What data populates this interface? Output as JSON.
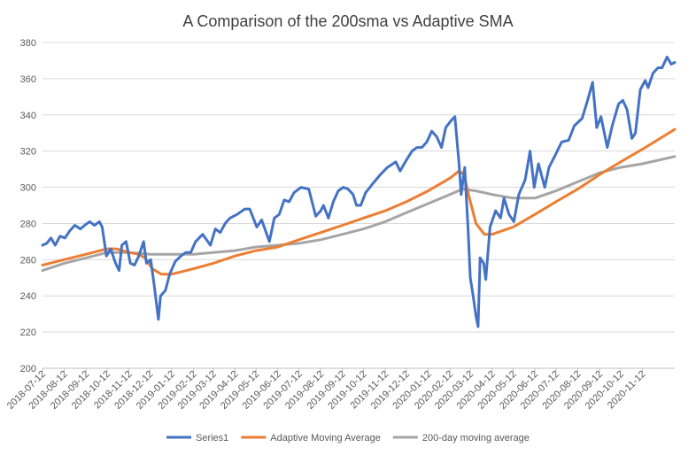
{
  "chart_data": {
    "type": "line",
    "title": "A Comparison of the  200sma vs Adaptive SMA",
    "xlabel": "",
    "ylabel": "",
    "ylim": [
      200,
      380
    ],
    "yticks": [
      200,
      220,
      240,
      260,
      280,
      300,
      320,
      340,
      360,
      380
    ],
    "xlim": [
      "2018-07-12",
      "2020-12-28"
    ],
    "x_tick_labels": [
      "2018-07-12",
      "2018-08-12",
      "2018-09-12",
      "2018-10-12",
      "2018-11-12",
      "2018-12-12",
      "2019-01-12",
      "2019-02-12",
      "2019-03-12",
      "2019-04-12",
      "2019-05-12",
      "2019-06-12",
      "2019-07-12",
      "2019-08-12",
      "2019-09-12",
      "2019-10-12",
      "2019-11-12",
      "2019-12-12",
      "2020-01-12",
      "2020-02-12",
      "2020-03-12",
      "2020-04-12",
      "2020-05-12",
      "2020-06-12",
      "2020-07-12",
      "2020-08-12",
      "2020-09-12",
      "2020-10-12",
      "2020-11-12"
    ],
    "grid": "horizontal",
    "legend_position": "bottom",
    "series": [
      {
        "name": "Series1",
        "color": "#4472C4",
        "points": [
          [
            "2018-07-12",
            268
          ],
          [
            "2018-07-18",
            269
          ],
          [
            "2018-07-24",
            272
          ],
          [
            "2018-07-30",
            268
          ],
          [
            "2018-08-06",
            273
          ],
          [
            "2018-08-13",
            272
          ],
          [
            "2018-08-20",
            276
          ],
          [
            "2018-08-27",
            279
          ],
          [
            "2018-09-04",
            277
          ],
          [
            "2018-09-10",
            279
          ],
          [
            "2018-09-17",
            281
          ],
          [
            "2018-09-24",
            279
          ],
          [
            "2018-10-01",
            281
          ],
          [
            "2018-10-05",
            278
          ],
          [
            "2018-10-11",
            262
          ],
          [
            "2018-10-17",
            266
          ],
          [
            "2018-10-24",
            258
          ],
          [
            "2018-10-29",
            254
          ],
          [
            "2018-11-02",
            268
          ],
          [
            "2018-11-08",
            270
          ],
          [
            "2018-11-14",
            258
          ],
          [
            "2018-11-20",
            257
          ],
          [
            "2018-11-26",
            262
          ],
          [
            "2018-12-03",
            270
          ],
          [
            "2018-12-07",
            258
          ],
          [
            "2018-12-13",
            260
          ],
          [
            "2018-12-18",
            246
          ],
          [
            "2018-12-24",
            227
          ],
          [
            "2018-12-27",
            240
          ],
          [
            "2019-01-03",
            243
          ],
          [
            "2019-01-09",
            252
          ],
          [
            "2019-01-17",
            259
          ],
          [
            "2019-01-25",
            262
          ],
          [
            "2019-02-01",
            264
          ],
          [
            "2019-02-08",
            264
          ],
          [
            "2019-02-15",
            270
          ],
          [
            "2019-02-25",
            274
          ],
          [
            "2019-03-08",
            268
          ],
          [
            "2019-03-15",
            277
          ],
          [
            "2019-03-22",
            275
          ],
          [
            "2019-03-29",
            280
          ],
          [
            "2019-04-05",
            283
          ],
          [
            "2019-04-15",
            285
          ],
          [
            "2019-04-26",
            288
          ],
          [
            "2019-05-03",
            288
          ],
          [
            "2019-05-13",
            278
          ],
          [
            "2019-05-20",
            282
          ],
          [
            "2019-05-31",
            270
          ],
          [
            "2019-06-07",
            283
          ],
          [
            "2019-06-14",
            285
          ],
          [
            "2019-06-21",
            293
          ],
          [
            "2019-06-28",
            292
          ],
          [
            "2019-07-05",
            297
          ],
          [
            "2019-07-15",
            300
          ],
          [
            "2019-07-26",
            299
          ],
          [
            "2019-08-05",
            284
          ],
          [
            "2019-08-12",
            287
          ],
          [
            "2019-08-16",
            290
          ],
          [
            "2019-08-23",
            283
          ],
          [
            "2019-08-30",
            292
          ],
          [
            "2019-09-06",
            298
          ],
          [
            "2019-09-13",
            300
          ],
          [
            "2019-09-20",
            299
          ],
          [
            "2019-09-27",
            296
          ],
          [
            "2019-10-02",
            290
          ],
          [
            "2019-10-08",
            290
          ],
          [
            "2019-10-15",
            297
          ],
          [
            "2019-10-25",
            302
          ],
          [
            "2019-11-05",
            307
          ],
          [
            "2019-11-15",
            311
          ],
          [
            "2019-11-27",
            314
          ],
          [
            "2019-12-03",
            309
          ],
          [
            "2019-12-12",
            315
          ],
          [
            "2019-12-20",
            320
          ],
          [
            "2019-12-27",
            322
          ],
          [
            "2020-01-03",
            322
          ],
          [
            "2020-01-10",
            325
          ],
          [
            "2020-01-17",
            331
          ],
          [
            "2020-01-24",
            328
          ],
          [
            "2020-01-31",
            322
          ],
          [
            "2020-02-06",
            333
          ],
          [
            "2020-02-14",
            337
          ],
          [
            "2020-02-19",
            339
          ],
          [
            "2020-02-25",
            313
          ],
          [
            "2020-02-28",
            296
          ],
          [
            "2020-03-04",
            311
          ],
          [
            "2020-03-09",
            275
          ],
          [
            "2020-03-12",
            250
          ],
          [
            "2020-03-16",
            240
          ],
          [
            "2020-03-20",
            229
          ],
          [
            "2020-03-23",
            223
          ],
          [
            "2020-03-26",
            261
          ],
          [
            "2020-03-31",
            258
          ],
          [
            "2020-04-03",
            249
          ],
          [
            "2020-04-09",
            278
          ],
          [
            "2020-04-17",
            287
          ],
          [
            "2020-04-24",
            283
          ],
          [
            "2020-04-29",
            294
          ],
          [
            "2020-05-06",
            285
          ],
          [
            "2020-05-13",
            281
          ],
          [
            "2020-05-20",
            296
          ],
          [
            "2020-05-29",
            304
          ],
          [
            "2020-06-05",
            320
          ],
          [
            "2020-06-11",
            300
          ],
          [
            "2020-06-17",
            313
          ],
          [
            "2020-06-26",
            300
          ],
          [
            "2020-07-02",
            311
          ],
          [
            "2020-07-10",
            317
          ],
          [
            "2020-07-20",
            325
          ],
          [
            "2020-07-30",
            326
          ],
          [
            "2020-08-07",
            334
          ],
          [
            "2020-08-18",
            338
          ],
          [
            "2020-08-26",
            348
          ],
          [
            "2020-09-02",
            358
          ],
          [
            "2020-09-08",
            333
          ],
          [
            "2020-09-14",
            339
          ],
          [
            "2020-09-23",
            322
          ],
          [
            "2020-09-30",
            334
          ],
          [
            "2020-10-09",
            346
          ],
          [
            "2020-10-15",
            348
          ],
          [
            "2020-10-21",
            343
          ],
          [
            "2020-10-28",
            327
          ],
          [
            "2020-11-02",
            330
          ],
          [
            "2020-11-09",
            354
          ],
          [
            "2020-11-16",
            359
          ],
          [
            "2020-11-20",
            355
          ],
          [
            "2020-11-27",
            363
          ],
          [
            "2020-12-04",
            366
          ],
          [
            "2020-12-10",
            366
          ],
          [
            "2020-12-17",
            372
          ],
          [
            "2020-12-23",
            368
          ],
          [
            "2020-12-28",
            369
          ]
        ]
      },
      {
        "name": "Adaptive Moving Average",
        "color": "#ED7D31",
        "points": [
          [
            "2018-07-12",
            257
          ],
          [
            "2018-08-12",
            260
          ],
          [
            "2018-09-12",
            263
          ],
          [
            "2018-10-12",
            266
          ],
          [
            "2018-10-25",
            266
          ],
          [
            "2018-11-12",
            264
          ],
          [
            "2018-11-25",
            263
          ],
          [
            "2018-12-05",
            261
          ],
          [
            "2018-12-15",
            255
          ],
          [
            "2018-12-28",
            252
          ],
          [
            "2019-01-12",
            252
          ],
          [
            "2019-02-12",
            255
          ],
          [
            "2019-03-12",
            258
          ],
          [
            "2019-04-12",
            262
          ],
          [
            "2019-05-12",
            265
          ],
          [
            "2019-06-12",
            267
          ],
          [
            "2019-07-12",
            271
          ],
          [
            "2019-08-12",
            275
          ],
          [
            "2019-09-12",
            279
          ],
          [
            "2019-10-12",
            283
          ],
          [
            "2019-11-12",
            287
          ],
          [
            "2019-12-12",
            292
          ],
          [
            "2020-01-12",
            298
          ],
          [
            "2020-02-12",
            305
          ],
          [
            "2020-02-25",
            309
          ],
          [
            "2020-03-03",
            307
          ],
          [
            "2020-03-10",
            295
          ],
          [
            "2020-03-20",
            280
          ],
          [
            "2020-04-01",
            274
          ],
          [
            "2020-04-12",
            274
          ],
          [
            "2020-05-12",
            278
          ],
          [
            "2020-06-12",
            285
          ],
          [
            "2020-07-12",
            292
          ],
          [
            "2020-08-12",
            299
          ],
          [
            "2020-09-12",
            307
          ],
          [
            "2020-10-12",
            314
          ],
          [
            "2020-11-12",
            321
          ],
          [
            "2020-12-28",
            332
          ]
        ]
      },
      {
        "name": "200-day moving average",
        "color": "#A5A5A5",
        "points": [
          [
            "2018-07-12",
            254
          ],
          [
            "2018-08-12",
            258
          ],
          [
            "2018-09-12",
            261
          ],
          [
            "2018-10-12",
            264
          ],
          [
            "2018-11-12",
            264
          ],
          [
            "2018-12-12",
            263
          ],
          [
            "2019-01-12",
            263
          ],
          [
            "2019-02-12",
            263
          ],
          [
            "2019-03-12",
            264
          ],
          [
            "2019-04-12",
            265
          ],
          [
            "2019-05-12",
            267
          ],
          [
            "2019-06-12",
            268
          ],
          [
            "2019-07-12",
            269
          ],
          [
            "2019-08-12",
            271
          ],
          [
            "2019-09-12",
            274
          ],
          [
            "2019-10-12",
            277
          ],
          [
            "2019-11-12",
            281
          ],
          [
            "2019-12-12",
            286
          ],
          [
            "2020-01-12",
            291
          ],
          [
            "2020-02-12",
            296
          ],
          [
            "2020-03-01",
            299
          ],
          [
            "2020-03-20",
            298
          ],
          [
            "2020-04-12",
            296
          ],
          [
            "2020-05-12",
            294
          ],
          [
            "2020-06-12",
            294
          ],
          [
            "2020-07-12",
            298
          ],
          [
            "2020-08-12",
            303
          ],
          [
            "2020-09-12",
            308
          ],
          [
            "2020-10-12",
            311
          ],
          [
            "2020-11-12",
            313
          ],
          [
            "2020-12-28",
            317
          ]
        ]
      }
    ]
  }
}
